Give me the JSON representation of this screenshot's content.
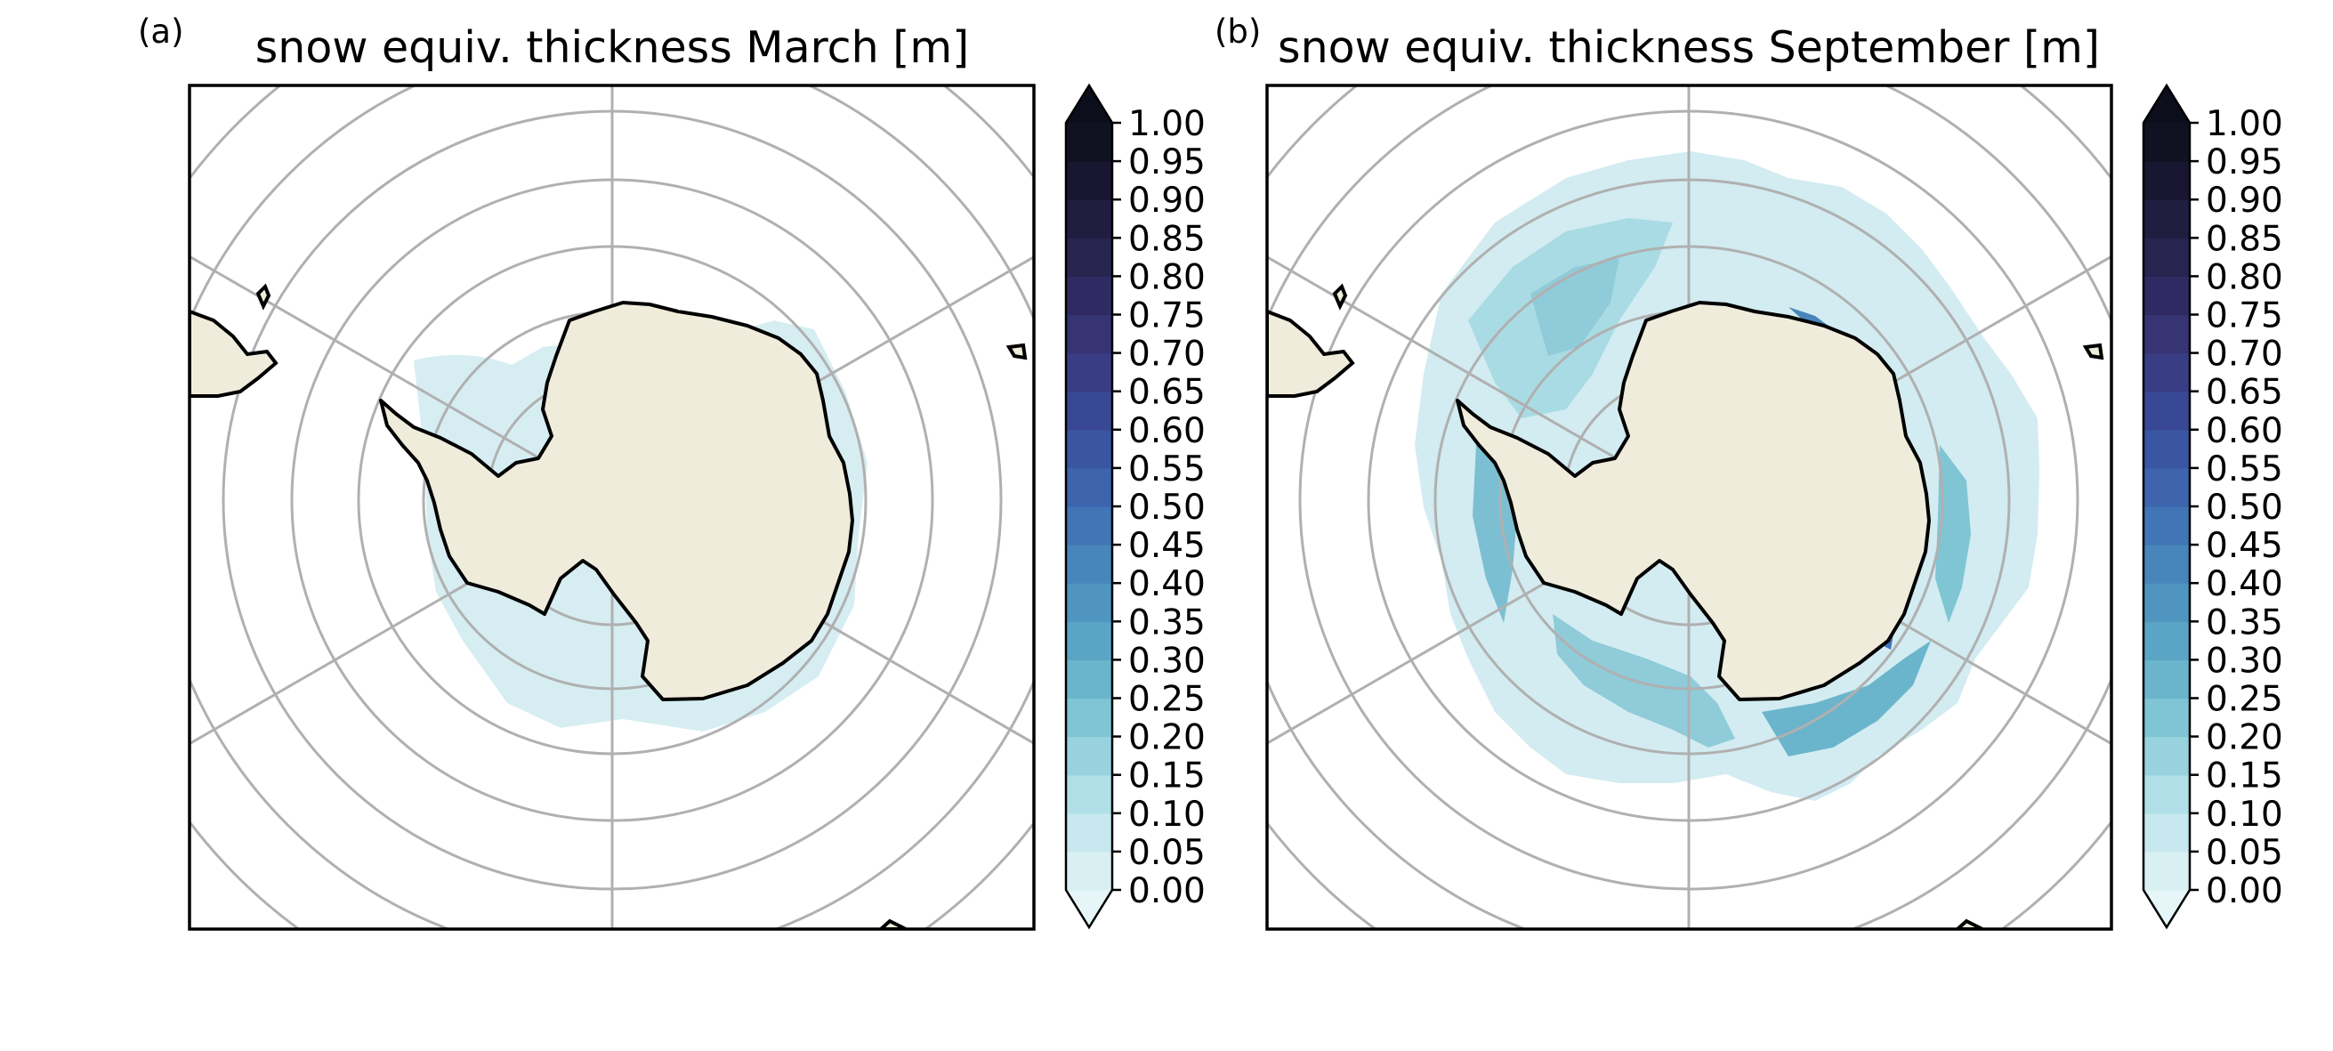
{
  "panels": [
    {
      "tag": "(a)",
      "title": "snow equiv. thickness March [m]",
      "colorbar_ticks": [
        "1.00",
        "0.95",
        "0.90",
        "0.85",
        "0.80",
        "0.75",
        "0.70",
        "0.65",
        "0.60",
        "0.55",
        "0.50",
        "0.45",
        "0.40",
        "0.35",
        "0.30",
        "0.25",
        "0.20",
        "0.15",
        "0.10",
        "0.05",
        "0.00"
      ]
    },
    {
      "tag": "(b)",
      "title": "snow equiv. thickness September [m]",
      "colorbar_ticks": [
        "1.00",
        "0.95",
        "0.90",
        "0.85",
        "0.80",
        "0.75",
        "0.70",
        "0.65",
        "0.60",
        "0.55",
        "0.50",
        "0.45",
        "0.40",
        "0.35",
        "0.30",
        "0.25",
        "0.20",
        "0.15",
        "0.10",
        "0.05",
        "0.00"
      ]
    }
  ],
  "map": {
    "projection": "south-polar-stereographic",
    "land_color": "#efecdc",
    "grid_color": "#b0b0b0",
    "coast_color": "#000000"
  },
  "colorbar": {
    "min": 0.0,
    "max": 1.0,
    "step": 0.05,
    "extend": "both",
    "colors": [
      "#d9f0f3",
      "#c7e8ee",
      "#b0dfe7",
      "#97d2de",
      "#80c5d4",
      "#6ab5cb",
      "#5aa5c5",
      "#4f95c0",
      "#4885bb",
      "#4275b5",
      "#3d64ad",
      "#3a55a2",
      "#394894",
      "#393d84",
      "#363473",
      "#2f2b62",
      "#272450",
      "#201d40",
      "#181630",
      "#111221"
    ],
    "under_color": "#e6f6f8",
    "over_color": "#0d0e1c"
  }
}
